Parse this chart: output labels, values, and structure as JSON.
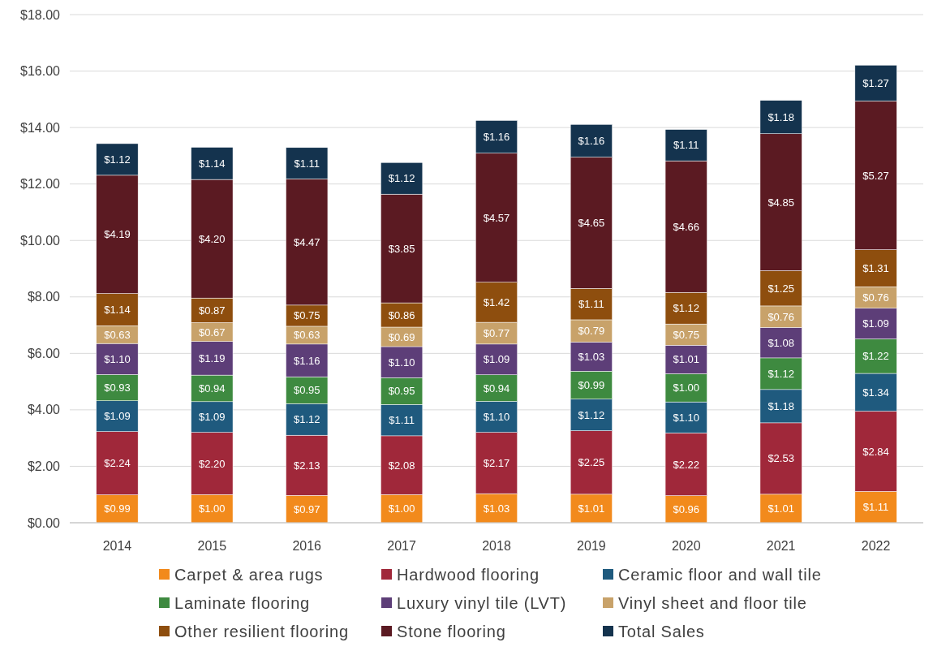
{
  "chart_data": {
    "type": "bar",
    "stacked": true,
    "categories": [
      "2014",
      "2015",
      "2016",
      "2017",
      "2018",
      "2019",
      "2020",
      "2021",
      "2022"
    ],
    "ylim": [
      0,
      18
    ],
    "yticks": [
      {
        "value": 0,
        "label": "$0.00"
      },
      {
        "value": 2,
        "label": "$2.00"
      },
      {
        "value": 4,
        "label": "$4.00"
      },
      {
        "value": 6,
        "label": "$6.00"
      },
      {
        "value": 8,
        "label": "$8.00"
      },
      {
        "value": 10,
        "label": "$10.00"
      },
      {
        "value": 12,
        "label": "$12.00"
      },
      {
        "value": 14,
        "label": "$14.00"
      },
      {
        "value": 16,
        "label": "$16.00"
      },
      {
        "value": 18,
        "label": "$18.00"
      }
    ],
    "grid": "y",
    "legend": "bottom",
    "series": [
      {
        "name": "Carpet & area rugs",
        "color": "#f28a1c",
        "values": [
          0.99,
          1.0,
          0.97,
          1.0,
          1.03,
          1.01,
          0.96,
          1.01,
          1.11
        ],
        "value_labels": [
          "$0.99",
          "$1.00",
          "$0.97",
          "$1.00",
          "$1.03",
          "$1.01",
          "$0.96",
          "$1.01",
          "$1.11"
        ]
      },
      {
        "name": "Hardwood flooring",
        "color": "#a0283a",
        "values": [
          2.24,
          2.2,
          2.13,
          2.08,
          2.17,
          2.25,
          2.22,
          2.53,
          2.84
        ],
        "value_labels": [
          "$2.24",
          "$2.20",
          "$2.13",
          "$2.08",
          "$2.17",
          "$2.25",
          "$2.22",
          "$2.53",
          "$2.84"
        ]
      },
      {
        "name": "Ceramic floor and wall tile",
        "color": "#1f5a7e",
        "values": [
          1.09,
          1.09,
          1.12,
          1.11,
          1.1,
          1.12,
          1.1,
          1.18,
          1.34
        ],
        "value_labels": [
          "$1.09",
          "$1.09",
          "$1.12",
          "$1.11",
          "$1.10",
          "$1.12",
          "$1.10",
          "$1.18",
          "$1.34"
        ]
      },
      {
        "name": "Laminate flooring",
        "color": "#3e8a40",
        "values": [
          0.93,
          0.94,
          0.95,
          0.95,
          0.94,
          0.99,
          1.0,
          1.12,
          1.22
        ],
        "value_labels": [
          "$0.93",
          "$0.94",
          "$0.95",
          "$0.95",
          "$0.94",
          "$0.99",
          "$1.00",
          "$1.12",
          "$1.22"
        ]
      },
      {
        "name": "Luxury vinyl tile (LVT)",
        "color": "#5d3e78",
        "values": [
          1.1,
          1.19,
          1.16,
          1.1,
          1.09,
          1.03,
          1.01,
          1.08,
          1.09
        ],
        "value_labels": [
          "$1.10",
          "$1.19",
          "$1.16",
          "$1.10",
          "$1.09",
          "$1.03",
          "$1.01",
          "$1.08",
          "$1.09"
        ]
      },
      {
        "name": "Vinyl sheet and floor tile",
        "color": "#c8a26a",
        "values": [
          0.63,
          0.67,
          0.63,
          0.69,
          0.77,
          0.79,
          0.75,
          0.76,
          0.76
        ],
        "value_labels": [
          "$0.63",
          "$0.67",
          "$0.63",
          "$0.69",
          "$0.77",
          "$0.79",
          "$0.75",
          "$0.76",
          "$0.76"
        ]
      },
      {
        "name": "Other resilient flooring",
        "color": "#8e4e0e",
        "values": [
          1.14,
          0.87,
          0.75,
          0.86,
          1.42,
          1.11,
          1.12,
          1.25,
          1.31
        ],
        "value_labels": [
          "$1.14",
          "$0.87",
          "$0.75",
          "$0.86",
          "$1.42",
          "$1.11",
          "$1.12",
          "$1.25",
          "$1.31"
        ]
      },
      {
        "name": "Stone flooring",
        "color": "#5b1a22",
        "values": [
          4.19,
          4.2,
          4.47,
          3.85,
          4.57,
          4.65,
          4.66,
          4.85,
          5.27
        ],
        "value_labels": [
          "$4.19",
          "$4.20",
          "$4.47",
          "$3.85",
          "$4.57",
          "$4.65",
          "$4.66",
          "$4.85",
          "$5.27"
        ]
      },
      {
        "name": "Total Sales",
        "color": "#14334e",
        "values": [
          1.12,
          1.14,
          1.11,
          1.12,
          1.16,
          1.16,
          1.11,
          1.18,
          1.27
        ],
        "value_labels": [
          "$1.12",
          "$1.14",
          "$1.11",
          "$1.12",
          "$1.16",
          "$1.16",
          "$1.11",
          "$1.18",
          "$1.27"
        ]
      }
    ]
  }
}
